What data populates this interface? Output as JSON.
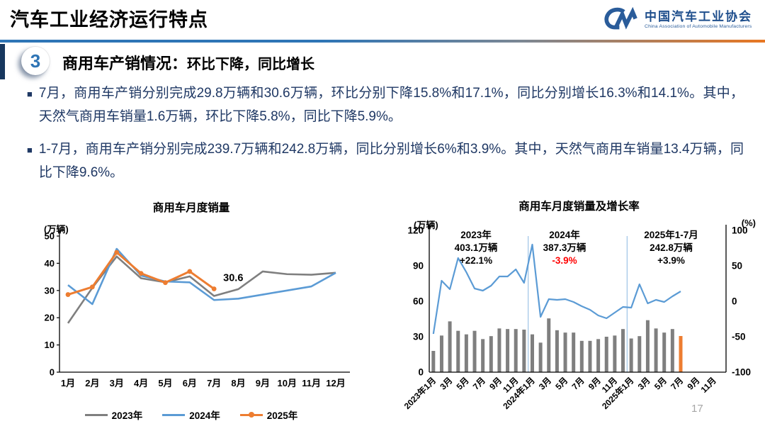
{
  "header": {
    "title": "汽车工业经济运行特点",
    "logo": {
      "name_cn": "中国汽车工业协会",
      "name_en": "China Association of Automobile Manufacturers"
    }
  },
  "section": {
    "badge": "3",
    "title": "商用车产销情况：",
    "subtitle": "环比下降，同比增长"
  },
  "bullet_marker": "■",
  "bullets": [
    "7月，商用车产销分别完成29.8万辆和30.6万辆，环比分别下降15.8%和17.1%，同比分别增长16.3%和14.1%。其中，天然气商用车销量1.6万辆，环比下降5.8%，同比下降5.9%。",
    "1-7月，商用车产销分别完成239.7万辆和242.8万辆，同比分别增长6%和3.9%。其中，天然气商用车销量13.4万辆，同比下降9.6%。"
  ],
  "colors": {
    "gray_series": "#7F7F7F",
    "blue_series": "#5B9BD5",
    "orange_series": "#ED7D31",
    "navy_text": "#1F3864",
    "divider_blue": "#2E75B6",
    "divider_orange": "#E87722",
    "negative_red": "#FF0000",
    "logo_blue": "#2A5C9A"
  },
  "chart_data": [
    {
      "type": "line",
      "title": "商用车月度销量",
      "unit_label": "(万辆)",
      "ylim": [
        0,
        50
      ],
      "yticks": [
        0,
        10,
        20,
        30,
        40,
        50
      ],
      "categories": [
        "1月",
        "2月",
        "3月",
        "4月",
        "5月",
        "6月",
        "7月",
        "8月",
        "9月",
        "10月",
        "11月",
        "12月"
      ],
      "legend_position": "bottom",
      "grid": false,
      "series": [
        {
          "name": "2023年",
          "color": "#7F7F7F",
          "marker": false,
          "values": [
            18,
            31,
            42.5,
            34.5,
            33,
            35.2,
            28,
            30.5,
            37,
            36,
            35.8,
            36.5
          ]
        },
        {
          "name": "2024年",
          "color": "#5B9BD5",
          "marker": false,
          "values": [
            32,
            25,
            45.3,
            35.5,
            33.3,
            33,
            26.5,
            27,
            28.5,
            30,
            31.5,
            36.5
          ]
        },
        {
          "name": "2025年",
          "color": "#ED7D31",
          "marker": true,
          "values": [
            28.5,
            31.3,
            44,
            36.3,
            32.9,
            37,
            30.6
          ]
        }
      ],
      "point_label": {
        "text": "30.6",
        "series_index": 2,
        "point_index": 6
      }
    },
    {
      "type": "bar+line",
      "title": "商用车月度销量及增长率",
      "unit_label_left": "(万辆)",
      "unit_label_right": "(%)",
      "ylim_left": [
        0,
        120
      ],
      "yticks_left": [
        0,
        30,
        60,
        90,
        120
      ],
      "ylim_right": [
        -100,
        100
      ],
      "yticks_right": [
        -100,
        -50,
        0,
        50,
        100
      ],
      "months_total": 36,
      "x_tick_labels": [
        "2023年1月",
        "3月",
        "5月",
        "7月",
        "9月",
        "11月",
        "2024年1月",
        "3月",
        "5月",
        "7月",
        "9月",
        "11月",
        "2025年1月",
        "3月",
        "5月",
        "7月",
        "9月",
        "11月"
      ],
      "bars": {
        "color": "#7F7F7F",
        "last_bar_color": "#ED7D31",
        "values": [
          18,
          31,
          43,
          35,
          32,
          35,
          28,
          30.5,
          37,
          36.5,
          36.5,
          36,
          32,
          25,
          45.5,
          35.5,
          33.5,
          33.5,
          26.5,
          26.5,
          28,
          30,
          31,
          36.5,
          28.5,
          30.5,
          44,
          37,
          33.5,
          36.5,
          30.6
        ]
      },
      "line": {
        "color": "#5B9BD5",
        "values": [
          -46,
          29,
          17,
          61,
          41,
          18,
          15,
          22,
          35,
          35,
          45,
          26,
          80,
          -22,
          3,
          2,
          3,
          -1,
          -7,
          -12,
          -20,
          -24,
          -16,
          -8,
          -9,
          24,
          -3,
          2,
          -1,
          7,
          14
        ]
      },
      "separator_indices": [
        12,
        24
      ],
      "separator_color": "#9DC3E6",
      "annotations": [
        {
          "line1": "2023年",
          "line2": "403.1万辆",
          "line3": "+22.1%",
          "line3_color": "#000000"
        },
        {
          "line1": "2024年",
          "line2": "387.3万辆",
          "line3": "-3.9%",
          "line3_color": "#FF0000"
        },
        {
          "line1": "2025年1-7月",
          "line2": "242.8万辆",
          "line3": "+3.9%",
          "line3_color": "#000000"
        }
      ]
    }
  ],
  "page_number": "17"
}
